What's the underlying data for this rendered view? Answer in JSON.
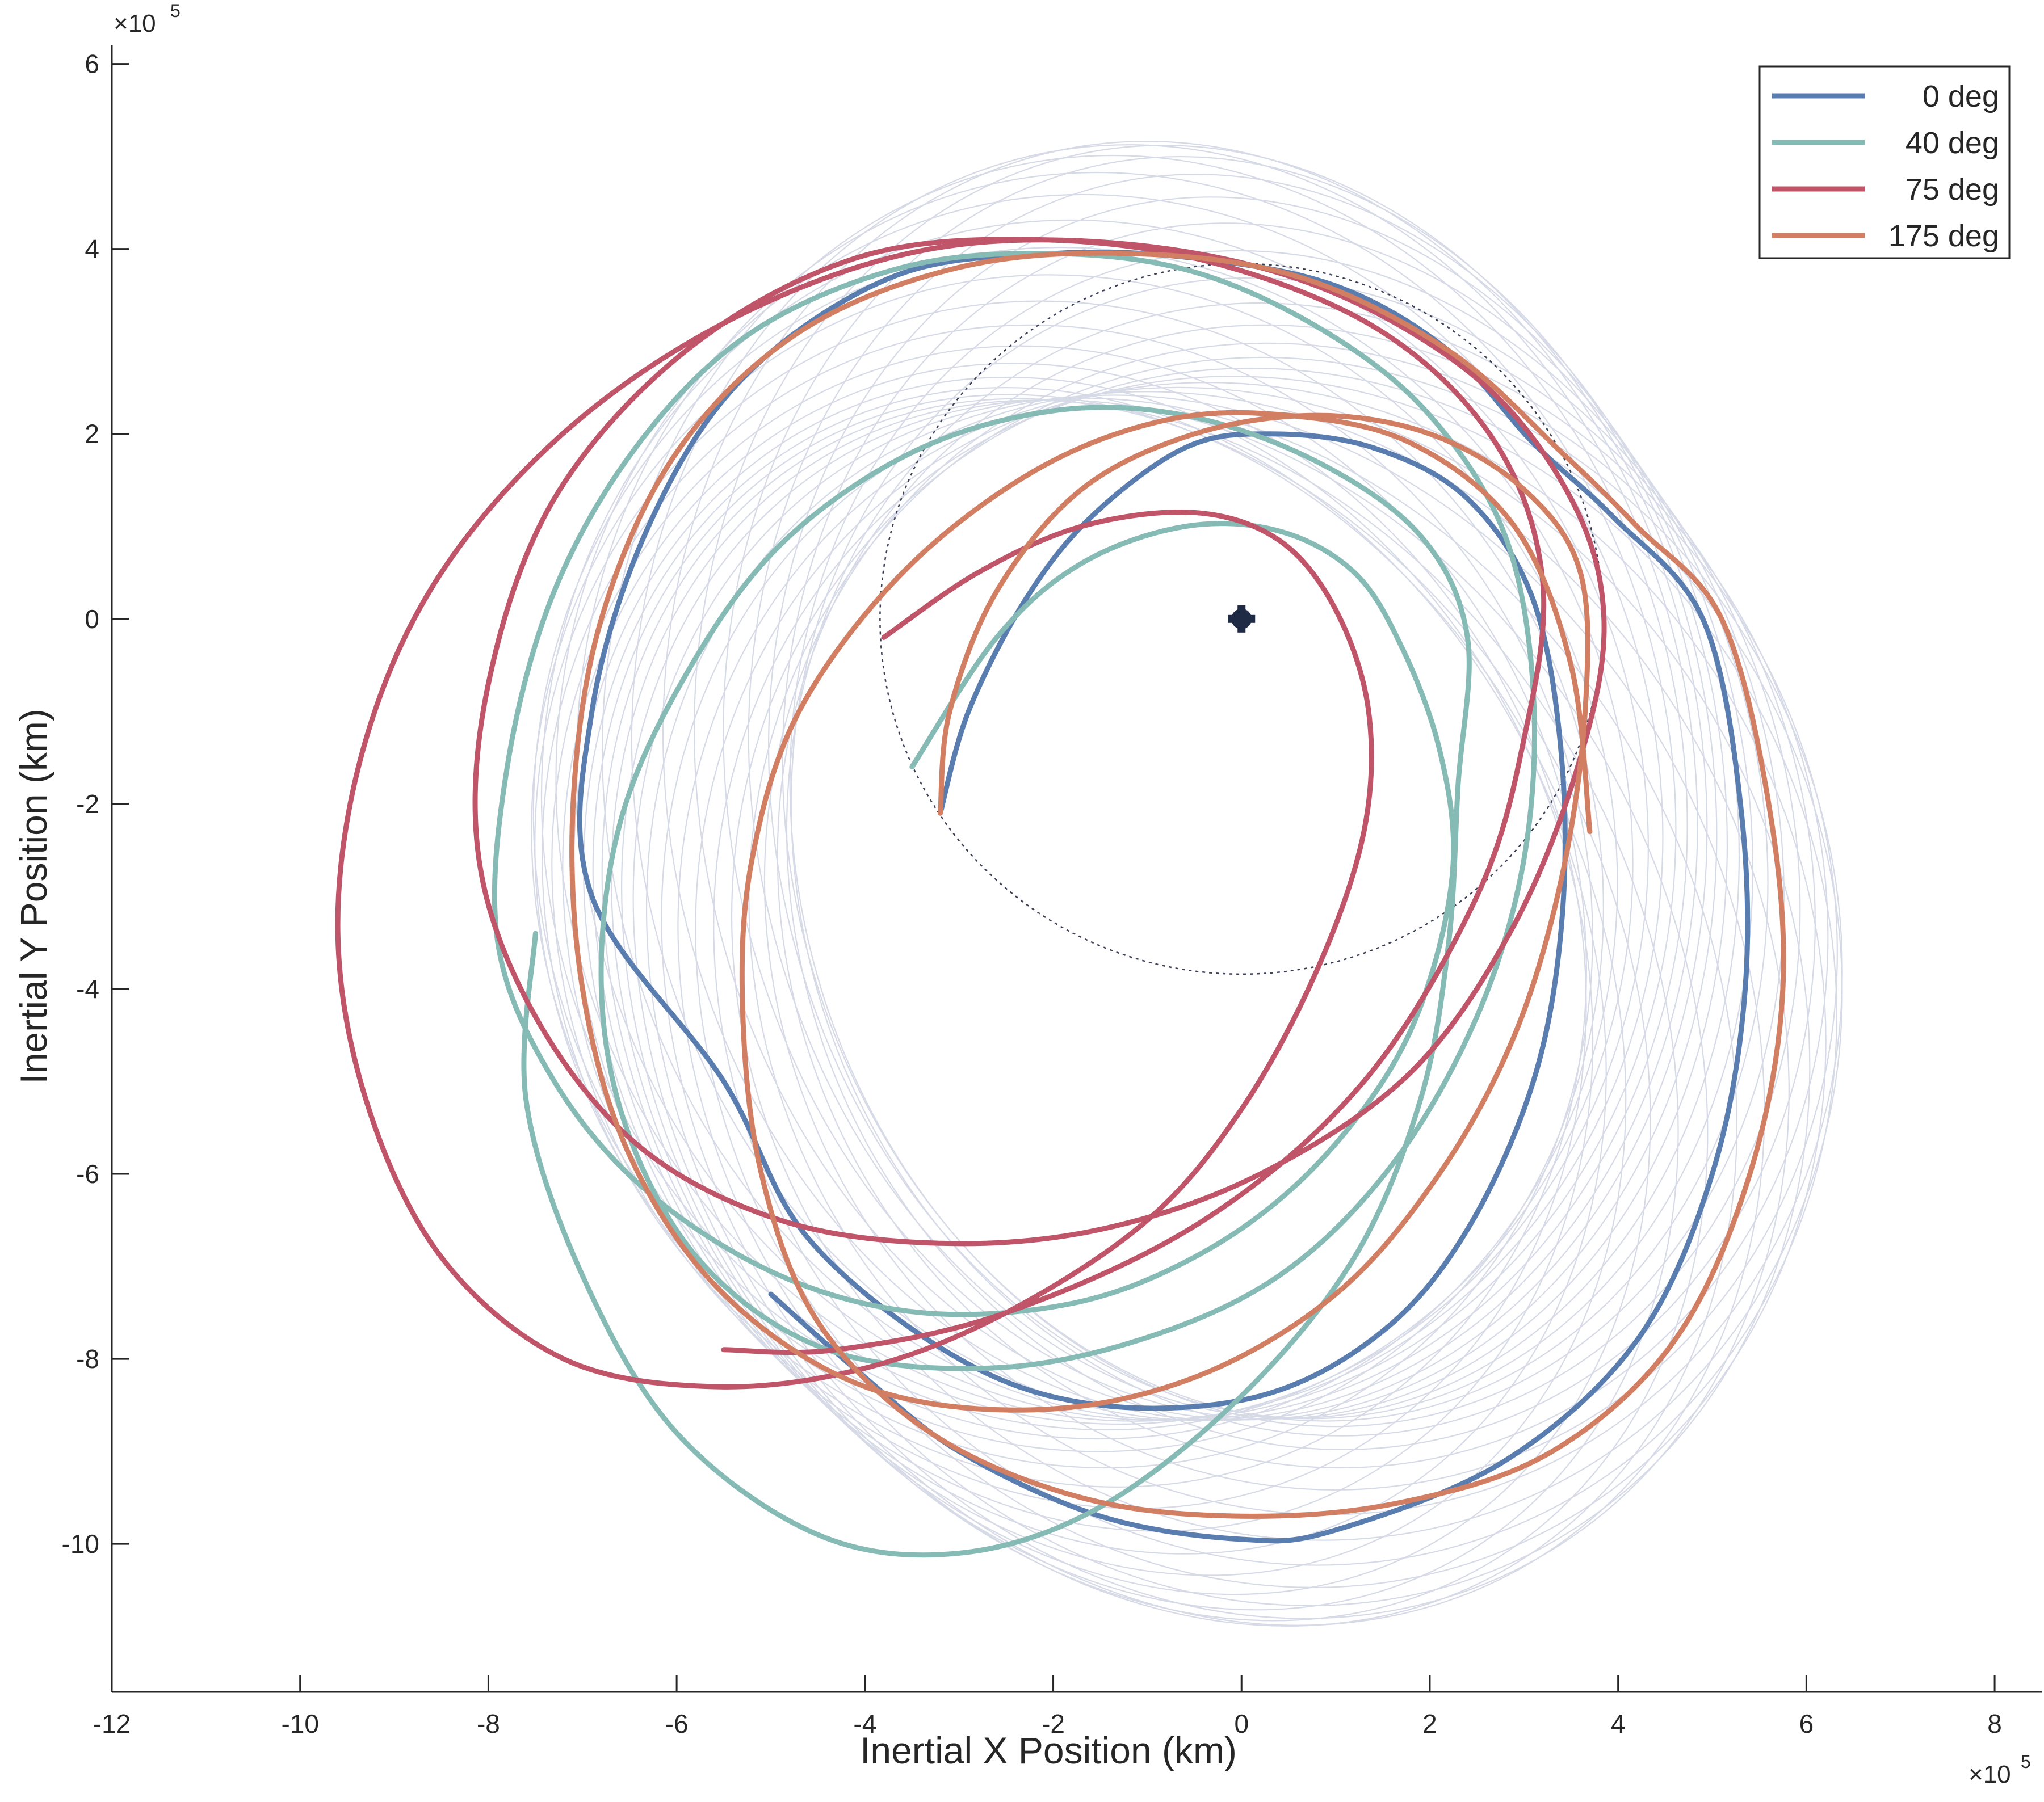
{
  "chart_data": {
    "type": "line",
    "xlabel": "Inertial X Position (km)",
    "ylabel": "Inertial Y Position (km)",
    "x_exponent_label": "×10",
    "y_exponent_label": "×10",
    "exponent_power": "5",
    "xlim": [
      -12,
      8.5
    ],
    "ylim": [
      -11.6,
      6.2
    ],
    "xticks": [
      -12,
      -10,
      -8,
      -6,
      -4,
      -2,
      0,
      2,
      4,
      6,
      8
    ],
    "xtick_labels": [
      "-12",
      "-10",
      "-8",
      "-6",
      "-4",
      "-2",
      "0",
      "2",
      "4",
      "6",
      "8"
    ],
    "yticks": [
      -10,
      -8,
      -6,
      -4,
      -2,
      0,
      2,
      4,
      6
    ],
    "ytick_labels": [
      "-10",
      "-8",
      "-6",
      "-4",
      "-2",
      "0",
      "2",
      "4",
      "6"
    ],
    "units_note": "coordinates in units of 10^5 km",
    "grid": false,
    "legend_position": "top-right",
    "central_body": {
      "x": 0,
      "y": 0,
      "color": "#1f2a44"
    },
    "reference_circle": {
      "center": [
        0,
        0
      ],
      "radius": 3.84,
      "style": "dotted",
      "color": "#3a3f55"
    },
    "background_family": {
      "color": "#d6d9e6",
      "count": 36,
      "center_radius": 1.25,
      "rx": 5.5,
      "ry": 6.6,
      "center_offset": [
        -0.6,
        -3.0
      ]
    },
    "series": [
      {
        "name": "0 deg",
        "color": "#5a7db0",
        "points": [
          [
            -3.2,
            -2.1
          ],
          [
            -2.9,
            -1.0
          ],
          [
            -2.3,
            0.2
          ],
          [
            -1.6,
            1.1
          ],
          [
            -0.6,
            1.85
          ],
          [
            0.3,
            2.0
          ],
          [
            1.4,
            1.85
          ],
          [
            2.4,
            1.3
          ],
          [
            3.1,
            0.2
          ],
          [
            3.4,
            -1.5
          ],
          [
            3.4,
            -3.3
          ],
          [
            3.1,
            -5.0
          ],
          [
            2.4,
            -6.6
          ],
          [
            1.5,
            -7.7
          ],
          [
            0.2,
            -8.4
          ],
          [
            -1.5,
            -8.5
          ],
          [
            -3.0,
            -8.0
          ],
          [
            -4.6,
            -6.7
          ],
          [
            -5.5,
            -5.0
          ],
          [
            -6.9,
            -3.0
          ],
          [
            -6.9,
            -1.0
          ],
          [
            -6.3,
            1.0
          ],
          [
            -5.3,
            2.6
          ],
          [
            -3.7,
            3.7
          ],
          [
            -2.0,
            3.95
          ],
          [
            -0.5,
            3.9
          ],
          [
            1.0,
            3.6
          ],
          [
            2.2,
            2.9
          ],
          [
            3.1,
            1.9
          ],
          [
            3.95,
            1.1
          ],
          [
            4.9,
            0.0
          ],
          [
            5.3,
            -2.0
          ],
          [
            5.35,
            -4.0
          ],
          [
            5.0,
            -6.0
          ],
          [
            4.2,
            -7.8
          ],
          [
            2.8,
            -9.1
          ],
          [
            1.0,
            -9.85
          ],
          [
            0.0,
            -9.95
          ],
          [
            -1.5,
            -9.7
          ],
          [
            -3.0,
            -9.0
          ],
          [
            -4.0,
            -8.2
          ],
          [
            -5.0,
            -7.3
          ]
        ]
      },
      {
        "name": "40 deg",
        "color": "#86bab5",
        "points": [
          [
            -3.5,
            -1.6
          ],
          [
            -2.6,
            -0.2
          ],
          [
            -1.7,
            0.6
          ],
          [
            -0.6,
            1.0
          ],
          [
            0.4,
            0.95
          ],
          [
            1.2,
            0.5
          ],
          [
            1.7,
            -0.3
          ],
          [
            2.1,
            -1.4
          ],
          [
            2.25,
            -2.6
          ],
          [
            2.0,
            -3.9
          ],
          [
            1.5,
            -5.0
          ],
          [
            0.6,
            -6.1
          ],
          [
            -0.5,
            -6.9
          ],
          [
            -1.8,
            -7.4
          ],
          [
            -3.4,
            -7.5
          ],
          [
            -4.9,
            -7.1
          ],
          [
            -6.3,
            -6.2
          ],
          [
            -7.3,
            -5.0
          ],
          [
            -7.9,
            -3.5
          ],
          [
            -7.8,
            -1.6
          ],
          [
            -7.3,
            0.3
          ],
          [
            -6.4,
            1.9
          ],
          [
            -5.2,
            3.1
          ],
          [
            -3.6,
            3.8
          ],
          [
            -2.0,
            3.95
          ],
          [
            -0.5,
            3.75
          ],
          [
            0.9,
            3.1
          ],
          [
            2.0,
            2.2
          ],
          [
            2.8,
            0.9
          ],
          [
            3.1,
            -0.8
          ],
          [
            3.0,
            -2.6
          ],
          [
            2.5,
            -4.3
          ],
          [
            1.6,
            -5.9
          ],
          [
            0.4,
            -7.1
          ],
          [
            -1.1,
            -7.8
          ],
          [
            -2.7,
            -8.1
          ],
          [
            -4.4,
            -7.9
          ],
          [
            -5.7,
            -7.0
          ],
          [
            -6.5,
            -5.6
          ],
          [
            -6.8,
            -4.0
          ],
          [
            -6.6,
            -2.2
          ],
          [
            -5.9,
            -0.6
          ],
          [
            -4.9,
            0.8
          ],
          [
            -3.5,
            1.8
          ],
          [
            -2.0,
            2.25
          ],
          [
            -0.6,
            2.2
          ],
          [
            0.8,
            1.7
          ],
          [
            1.9,
            0.9
          ],
          [
            2.4,
            -0.2
          ],
          [
            2.3,
            -1.8
          ],
          [
            2.2,
            -3.5
          ],
          [
            1.9,
            -5.2
          ],
          [
            1.2,
            -6.9
          ],
          [
            0.0,
            -8.4
          ],
          [
            -1.5,
            -9.6
          ],
          [
            -3.0,
            -10.1
          ],
          [
            -4.5,
            -9.9
          ],
          [
            -6.0,
            -8.8
          ],
          [
            -7.0,
            -7.1
          ],
          [
            -7.6,
            -5.2
          ],
          [
            -7.5,
            -3.4
          ]
        ]
      },
      {
        "name": "75 deg",
        "color": "#c05469",
        "points": [
          [
            -3.8,
            -0.2
          ],
          [
            -2.8,
            0.5
          ],
          [
            -1.7,
            1.0
          ],
          [
            -0.5,
            1.15
          ],
          [
            0.4,
            0.85
          ],
          [
            1.0,
            0.1
          ],
          [
            1.35,
            -1.0
          ],
          [
            1.3,
            -2.3
          ],
          [
            0.8,
            -3.8
          ],
          [
            0.0,
            -5.3
          ],
          [
            -1.0,
            -6.5
          ],
          [
            -2.5,
            -7.5
          ],
          [
            -4.0,
            -8.1
          ],
          [
            -5.6,
            -8.3
          ],
          [
            -7.2,
            -8.0
          ],
          [
            -8.5,
            -6.9
          ],
          [
            -9.3,
            -5.2
          ],
          [
            -9.6,
            -3.3
          ],
          [
            -9.3,
            -1.3
          ],
          [
            -8.5,
            0.5
          ],
          [
            -7.1,
            2.1
          ],
          [
            -5.3,
            3.3
          ],
          [
            -3.3,
            4.0
          ],
          [
            -1.2,
            4.05
          ],
          [
            0.8,
            3.6
          ],
          [
            2.5,
            2.6
          ],
          [
            3.5,
            1.3
          ],
          [
            3.85,
            0.0
          ],
          [
            3.6,
            -1.5
          ],
          [
            2.9,
            -3.3
          ],
          [
            1.8,
            -4.9
          ],
          [
            0.2,
            -6.0
          ],
          [
            -1.5,
            -6.6
          ],
          [
            -3.2,
            -6.75
          ],
          [
            -4.9,
            -6.5
          ],
          [
            -6.4,
            -5.7
          ],
          [
            -7.5,
            -4.3
          ],
          [
            -8.1,
            -2.6
          ],
          [
            -8.0,
            -0.7
          ],
          [
            -7.3,
            1.3
          ],
          [
            -5.9,
            2.9
          ],
          [
            -4.1,
            3.9
          ],
          [
            -2.2,
            4.1
          ],
          [
            -0.3,
            3.85
          ],
          [
            1.5,
            3.1
          ],
          [
            2.7,
            1.9
          ],
          [
            3.2,
            0.4
          ],
          [
            3.0,
            -1.3
          ],
          [
            2.5,
            -3.0
          ],
          [
            1.3,
            -5.0
          ],
          [
            -0.4,
            -6.5
          ],
          [
            -2.5,
            -7.5
          ],
          [
            -4.3,
            -7.9
          ],
          [
            -5.5,
            -7.9
          ]
        ]
      },
      {
        "name": "175 deg",
        "color": "#d27e62",
        "points": [
          [
            -3.2,
            -2.1
          ],
          [
            -3.1,
            -1.0
          ],
          [
            -2.6,
            0.3
          ],
          [
            -1.7,
            1.4
          ],
          [
            -0.5,
            2.0
          ],
          [
            0.8,
            2.2
          ],
          [
            2.0,
            2.0
          ],
          [
            3.0,
            1.4
          ],
          [
            3.6,
            0.5
          ],
          [
            3.65,
            -1.0
          ],
          [
            3.4,
            -2.8
          ],
          [
            2.9,
            -4.5
          ],
          [
            2.1,
            -6.0
          ],
          [
            1.0,
            -7.3
          ],
          [
            -0.5,
            -8.2
          ],
          [
            -2.2,
            -8.55
          ],
          [
            -4.0,
            -8.3
          ],
          [
            -5.5,
            -7.3
          ],
          [
            -6.5,
            -5.8
          ],
          [
            -7.0,
            -4.0
          ],
          [
            -7.1,
            -2.0
          ],
          [
            -6.8,
            0.0
          ],
          [
            -6.0,
            1.8
          ],
          [
            -4.7,
            3.1
          ],
          [
            -3.0,
            3.8
          ],
          [
            -1.2,
            3.95
          ],
          [
            0.6,
            3.7
          ],
          [
            2.2,
            2.9
          ],
          [
            3.4,
            1.8
          ],
          [
            4.2,
            1.0
          ],
          [
            5.1,
            0.0
          ],
          [
            5.6,
            -2.0
          ],
          [
            5.75,
            -4.0
          ],
          [
            5.4,
            -6.0
          ],
          [
            4.6,
            -7.8
          ],
          [
            3.3,
            -9.0
          ],
          [
            1.7,
            -9.55
          ],
          [
            0.0,
            -9.7
          ],
          [
            -1.7,
            -9.5
          ],
          [
            -3.3,
            -8.8
          ],
          [
            -4.5,
            -7.6
          ],
          [
            -5.1,
            -6.0
          ],
          [
            -5.3,
            -4.2
          ],
          [
            -5.2,
            -2.6
          ],
          [
            -4.7,
            -1.0
          ],
          [
            -3.6,
            0.5
          ],
          [
            -2.2,
            1.6
          ],
          [
            -0.8,
            2.15
          ],
          [
            0.5,
            2.2
          ],
          [
            1.8,
            1.9
          ],
          [
            2.9,
            1.0
          ],
          [
            3.5,
            -0.5
          ],
          [
            3.7,
            -2.3
          ]
        ]
      }
    ]
  },
  "legend": {
    "items": [
      {
        "label": "0 deg",
        "color": "#5a7db0"
      },
      {
        "label": "40 deg",
        "color": "#86bab5"
      },
      {
        "label": "75 deg",
        "color": "#c05469"
      },
      {
        "label": "175 deg",
        "color": "#d27e62"
      }
    ]
  }
}
